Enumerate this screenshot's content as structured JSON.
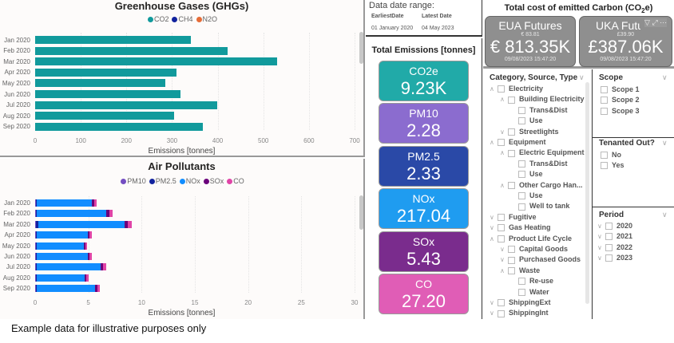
{
  "ghg": {
    "title": "Greenhouse Gases (GHGs)",
    "xlabel": "Emissions [tonnes]",
    "legend": [
      {
        "name": "CO2",
        "color": "#119a9c"
      },
      {
        "name": "CH4",
        "color": "#12239e"
      },
      {
        "name": "N2O",
        "color": "#e66c37"
      }
    ]
  },
  "air": {
    "title": "Air Pollutants",
    "xlabel": "Emissions [tonnes]",
    "legend": [
      {
        "name": "PM10",
        "color": "#744ec2"
      },
      {
        "name": "PM2.5",
        "color": "#12239e"
      },
      {
        "name": "NOx",
        "color": "#118dff"
      },
      {
        "name": "SOx",
        "color": "#6b007b"
      },
      {
        "name": "CO",
        "color": "#e044a7"
      }
    ]
  },
  "chart_data": [
    {
      "type": "bar",
      "orientation": "horizontal",
      "title": "Greenhouse Gases (GHGs)",
      "xlabel": "Emissions [tonnes]",
      "xlim": [
        0,
        700
      ],
      "xticks": [
        0,
        100,
        200,
        300,
        400,
        500,
        600,
        700
      ],
      "grid": true,
      "legend": "top",
      "categories": [
        "Jan 2020",
        "Feb 2020",
        "Mar 2020",
        "Apr 2020",
        "May 2020",
        "Jun 2020",
        "Jul 2020",
        "Aug 2020",
        "Sep 2020"
      ],
      "series": [
        {
          "name": "CO2",
          "values": [
            341,
            422,
            531,
            310,
            286,
            318,
            399,
            304,
            368
          ]
        }
      ]
    },
    {
      "type": "bar",
      "orientation": "horizontal",
      "stacked": true,
      "title": "Air Pollutants",
      "xlabel": "Emissions [tonnes]",
      "xlim": [
        0,
        30
      ],
      "xticks": [
        0,
        5,
        10,
        15,
        20,
        25,
        30
      ],
      "grid": true,
      "legend": "top",
      "categories": [
        "Jan 2020",
        "Feb 2020",
        "Mar 2020",
        "Apr 2020",
        "May 2020",
        "Jun 2020",
        "Jul 2020",
        "Aug 2020",
        "Sep 2020"
      ],
      "series": [
        {
          "name": "PM10",
          "values": [
            0.05,
            0.05,
            0.1,
            0.05,
            0.05,
            0.05,
            0.05,
            0.05,
            0.05
          ]
        },
        {
          "name": "PM2.5",
          "values": [
            0.1,
            0.1,
            0.2,
            0.1,
            0.1,
            0.1,
            0.1,
            0.1,
            0.1
          ]
        },
        {
          "name": "NOx",
          "values": [
            5.2,
            6.5,
            8.1,
            4.8,
            4.4,
            4.8,
            6.0,
            4.5,
            5.5
          ]
        },
        {
          "name": "SOx",
          "values": [
            0.2,
            0.3,
            0.3,
            0.15,
            0.15,
            0.15,
            0.25,
            0.15,
            0.2
          ]
        },
        {
          "name": "CO",
          "values": [
            0.25,
            0.35,
            0.35,
            0.25,
            0.2,
            0.25,
            0.3,
            0.2,
            0.25
          ]
        }
      ]
    }
  ],
  "date_range": {
    "title": "Data date range:",
    "col1": "EarliestDate",
    "col2": "Latest Date",
    "earliest": "01 January 2020",
    "latest": "04 May 2023"
  },
  "totals": {
    "title": "Total Emissions [tonnes]",
    "cards": [
      {
        "label": "CO2e",
        "value": "9.23K",
        "color": "#21aaa8"
      },
      {
        "label": "PM10",
        "value": "2.28",
        "color": "#8b6ccf"
      },
      {
        "label": "PM2.5",
        "value": "2.33",
        "color": "#2a49a7"
      },
      {
        "label": "NOx",
        "value": "217.04",
        "color": "#1f9cf0"
      },
      {
        "label": "SOx",
        "value": "5.43",
        "color": "#7a2c8d"
      },
      {
        "label": "CO",
        "value": "27.20",
        "color": "#e05db6"
      }
    ]
  },
  "carbon": {
    "title": "Total cost of emitted Carbon (CO",
    "title_sub": "2",
    "title_end": "e)",
    "cards": [
      {
        "name": "EUA Futures",
        "price": "€ 83.81",
        "value": "€ 813.35K",
        "time": "09/08/2023 15:47:20"
      },
      {
        "name": "UKA Futures",
        "price": "£39.90",
        "value": "£387.06K",
        "time": "09/08/2023 15:47:20"
      }
    ]
  },
  "category_slicer": {
    "title": "Category, Source, Type",
    "items": [
      {
        "label": "Electricity",
        "level": 0,
        "chev": "up"
      },
      {
        "label": "Building Electricity",
        "level": 1,
        "chev": "up"
      },
      {
        "label": "Trans&Dist",
        "level": 2,
        "chev": ""
      },
      {
        "label": "Use",
        "level": 2,
        "chev": ""
      },
      {
        "label": "Streetlights",
        "level": 1,
        "chev": "down"
      },
      {
        "label": "Equipment",
        "level": 0,
        "chev": "up"
      },
      {
        "label": "Electric Equipment",
        "level": 1,
        "chev": "up"
      },
      {
        "label": "Trans&Dist",
        "level": 2,
        "chev": ""
      },
      {
        "label": "Use",
        "level": 2,
        "chev": ""
      },
      {
        "label": "Other Cargo Han...",
        "level": 1,
        "chev": "up"
      },
      {
        "label": "Use",
        "level": 2,
        "chev": ""
      },
      {
        "label": "Well to tank",
        "level": 2,
        "chev": ""
      },
      {
        "label": "Fugitive",
        "level": 0,
        "chev": "down"
      },
      {
        "label": "Gas Heating",
        "level": 0,
        "chev": "down"
      },
      {
        "label": "Product Life Cycle",
        "level": 0,
        "chev": "up"
      },
      {
        "label": "Capital Goods",
        "level": 1,
        "chev": "down"
      },
      {
        "label": "Purchased Goods",
        "level": 1,
        "chev": "down"
      },
      {
        "label": "Waste",
        "level": 1,
        "chev": "up"
      },
      {
        "label": "Re-use",
        "level": 2,
        "chev": ""
      },
      {
        "label": "Water",
        "level": 2,
        "chev": ""
      },
      {
        "label": "ShippingExt",
        "level": 0,
        "chev": "down"
      },
      {
        "label": "ShippingInt",
        "level": 0,
        "chev": "down"
      }
    ]
  },
  "scope_slicer": {
    "title": "Scope",
    "items": [
      "Scope 1",
      "Scope 2",
      "Scope 3"
    ]
  },
  "tenanted_slicer": {
    "title": "Tenanted Out?",
    "items": [
      "No",
      "Yes"
    ]
  },
  "period_slicer": {
    "title": "Period",
    "items": [
      "2020",
      "2021",
      "2022",
      "2023"
    ]
  },
  "footer": "Example data for illustrative purposes only"
}
